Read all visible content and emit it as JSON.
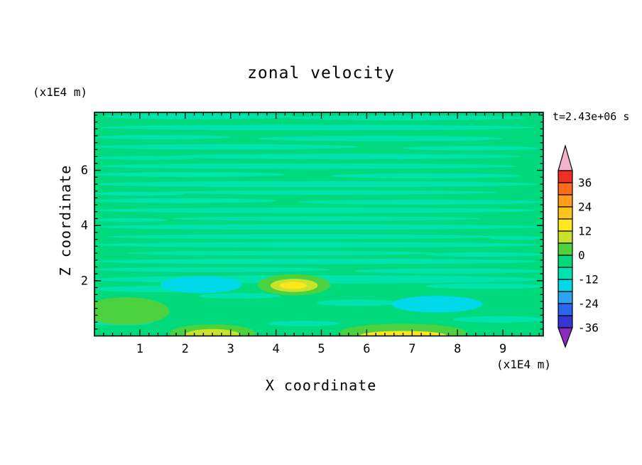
{
  "chart_data": {
    "type": "filled_contour",
    "title": "zonal velocity",
    "xlabel": "X coordinate",
    "ylabel": "Z coordinate",
    "x_unit": "(x1E4 m)",
    "y_unit": "(x1E4 m)",
    "time_annotation": "t=2.43e+06 s",
    "xlim": [
      0,
      9.89
    ],
    "ylim": [
      0,
      8.1
    ],
    "x_major_ticks": [
      1,
      2,
      3,
      4,
      5,
      6,
      7,
      8,
      9
    ],
    "y_major_ticks": [
      2,
      4,
      6
    ],
    "x_minor_step": 0.2,
    "y_minor_step": 0.25,
    "grid": false,
    "legend_position": "right-colorbar",
    "colorbar": {
      "labels": [
        36,
        24,
        12,
        0,
        -12,
        -24,
        -36
      ],
      "levels": [
        42,
        36,
        30,
        24,
        18,
        12,
        6,
        0,
        -6,
        -12,
        -18,
        -24,
        -30,
        -36
      ],
      "box_colors": [
        "#ee3024",
        "#ff6b1e",
        "#ff9c1c",
        "#ffc41c",
        "#ffe81e",
        "#c8e12b",
        "#4fd23c",
        "#00da7e",
        "#00e2b2",
        "#00d8e8",
        "#2ba4f2",
        "#2b66ee",
        "#3536cf"
      ],
      "over_color": "#f2b3cc",
      "under_color": "#8c2bbf"
    },
    "field": {
      "description": "zonal velocity field, mostly near 0 (-6..0 band) with thin horizontal streaks of 0..-12 band, cyan minima and yellow maxima near bottom",
      "colors": {
        "base": "#00d97c",
        "mint": "#00e3ae",
        "cyan": "#00d9ea",
        "green": "#4cd23f",
        "yellowgreen": "#c9e22a",
        "yellow": "#ffe51e"
      },
      "streaks": [
        [
          2.3,
          7.95,
          2.1,
          0.1
        ],
        [
          6.9,
          7.9,
          2.6,
          0.09
        ],
        [
          4.9,
          7.55,
          4.8,
          0.1
        ],
        [
          1.5,
          7.2,
          1.5,
          0.08
        ],
        [
          6.3,
          7.15,
          2.7,
          0.1
        ],
        [
          2.9,
          6.85,
          2.9,
          0.1
        ],
        [
          8.3,
          6.8,
          1.5,
          0.08
        ],
        [
          5.5,
          6.5,
          3.9,
          0.1
        ],
        [
          1.1,
          6.45,
          1.1,
          0.07
        ],
        [
          4.7,
          6.15,
          4.6,
          0.1
        ],
        [
          2.1,
          5.85,
          2.1,
          0.09
        ],
        [
          7.3,
          5.8,
          2.1,
          0.09
        ],
        [
          4.9,
          5.5,
          4.9,
          0.11
        ],
        [
          5.2,
          5.2,
          3.7,
          0.08
        ],
        [
          1.0,
          5.15,
          1.0,
          0.07
        ],
        [
          2.0,
          4.9,
          2.0,
          0.09
        ],
        [
          7.2,
          4.85,
          2.7,
          0.09
        ],
        [
          4.9,
          4.55,
          4.9,
          0.1
        ],
        [
          5.1,
          4.25,
          3.4,
          0.08
        ],
        [
          0.8,
          4.2,
          0.8,
          0.07
        ],
        [
          4.9,
          3.95,
          4.9,
          0.1
        ],
        [
          4.6,
          3.6,
          4.3,
          0.09
        ],
        [
          9.3,
          3.55,
          0.6,
          0.07
        ],
        [
          4.9,
          3.3,
          4.9,
          0.1
        ],
        [
          4.1,
          3.0,
          3.4,
          0.08
        ],
        [
          8.6,
          2.95,
          1.3,
          0.08
        ],
        [
          4.9,
          2.7,
          4.9,
          0.1
        ],
        [
          2.6,
          2.4,
          2.6,
          0.09
        ],
        [
          7.8,
          2.35,
          2.1,
          0.09
        ],
        [
          4.9,
          2.05,
          4.9,
          0.15
        ],
        [
          1.3,
          1.7,
          1.3,
          0.11
        ],
        [
          8.6,
          1.8,
          1.3,
          0.1
        ],
        [
          3.2,
          1.45,
          0.9,
          0.1
        ],
        [
          5.8,
          1.2,
          0.9,
          0.12
        ],
        [
          0.6,
          0.5,
          0.7,
          0.13
        ],
        [
          8.9,
          0.6,
          1.0,
          0.12
        ],
        [
          4.6,
          0.45,
          0.8,
          0.1
        ]
      ],
      "patches": [
        {
          "color": "green",
          "x": 0.7,
          "z": 0.9,
          "rx": 0.95,
          "rz": 0.5
        },
        {
          "color": "green",
          "x": 4.4,
          "z": 1.85,
          "rx": 0.8,
          "rz": 0.38
        },
        {
          "color": "yellowgreen",
          "x": 4.4,
          "z": 1.83,
          "rx": 0.52,
          "rz": 0.24
        },
        {
          "color": "yellow",
          "x": 4.38,
          "z": 1.83,
          "rx": 0.3,
          "rz": 0.13
        },
        {
          "color": "cyan",
          "x": 2.35,
          "z": 1.85,
          "rx": 0.9,
          "rz": 0.3
        },
        {
          "color": "cyan",
          "x": 7.55,
          "z": 1.15,
          "rx": 1.0,
          "rz": 0.3
        },
        {
          "color": "green",
          "x": 2.6,
          "z": 0.1,
          "rx": 0.95,
          "rz": 0.32
        },
        {
          "color": "yellowgreen",
          "x": 2.6,
          "z": 0.05,
          "rx": 0.6,
          "rz": 0.2
        },
        {
          "color": "green",
          "x": 6.8,
          "z": 0.12,
          "rx": 1.4,
          "rz": 0.32
        },
        {
          "color": "yellow",
          "x": 6.8,
          "z": 0.02,
          "rx": 0.95,
          "rz": 0.16
        }
      ]
    }
  }
}
